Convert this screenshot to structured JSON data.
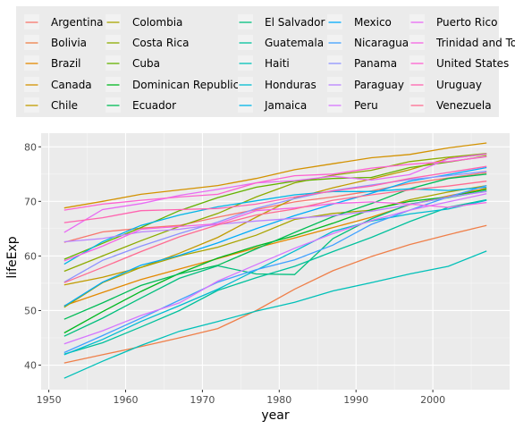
{
  "chart_data": {
    "type": "line",
    "title": "",
    "xlabel": "year",
    "ylabel": "lifeExp",
    "xlim": [
      1949,
      2010
    ],
    "ylim": [
      35.5,
      82.5
    ],
    "x_ticks": [
      1950,
      1960,
      1970,
      1980,
      1990,
      2000
    ],
    "y_ticks": [
      40,
      50,
      60,
      70,
      80
    ],
    "grid": true,
    "legend_position": "top",
    "x": [
      1952,
      1957,
      1962,
      1967,
      1972,
      1977,
      1982,
      1987,
      1992,
      1997,
      2002,
      2007
    ],
    "series": [
      {
        "name": "Argentina",
        "color": "#F8766D",
        "values": [
          62.5,
          64.4,
          65.1,
          65.6,
          67.1,
          68.5,
          69.9,
          70.8,
          71.9,
          73.3,
          74.3,
          75.3
        ]
      },
      {
        "name": "Bolivia",
        "color": "#EF7F49",
        "values": [
          40.4,
          41.9,
          43.4,
          45.0,
          46.7,
          50.0,
          53.9,
          57.3,
          59.9,
          62.1,
          63.9,
          65.6
        ]
      },
      {
        "name": "Brazil",
        "color": "#E38900",
        "values": [
          50.9,
          53.3,
          55.7,
          57.6,
          59.5,
          61.5,
          63.3,
          65.2,
          67.1,
          69.4,
          71.0,
          72.4
        ]
      },
      {
        "name": "Canada",
        "color": "#D39200",
        "values": [
          68.8,
          70.0,
          71.3,
          72.1,
          72.9,
          74.2,
          75.8,
          76.9,
          78.0,
          78.6,
          79.8,
          80.7
        ]
      },
      {
        "name": "Chile",
        "color": "#C09B00",
        "values": [
          54.7,
          56.1,
          57.9,
          60.5,
          63.4,
          67.1,
          70.6,
          72.5,
          74.1,
          75.8,
          77.9,
          78.6
        ]
      },
      {
        "name": "Colombia",
        "color": "#A9A400",
        "values": [
          50.6,
          55.1,
          57.9,
          60.0,
          61.6,
          63.8,
          66.7,
          67.8,
          68.4,
          70.3,
          71.7,
          72.9
        ]
      },
      {
        "name": "Costa Rica",
        "color": "#8DAB00",
        "values": [
          57.2,
          60.0,
          62.8,
          65.4,
          67.8,
          70.8,
          73.4,
          74.8,
          75.7,
          77.3,
          78.1,
          78.8
        ]
      },
      {
        "name": "Cuba",
        "color": "#64B200",
        "values": [
          59.4,
          62.3,
          65.2,
          68.3,
          70.7,
          72.6,
          73.7,
          74.2,
          74.4,
          76.2,
          77.2,
          78.3
        ]
      },
      {
        "name": "Dominican Republic",
        "color": "#00B81F",
        "values": [
          45.9,
          49.8,
          53.5,
          56.8,
          59.6,
          61.8,
          63.7,
          66.0,
          68.5,
          70.0,
          70.8,
          72.2
        ]
      },
      {
        "name": "Ecuador",
        "color": "#00BC56",
        "values": [
          48.4,
          51.4,
          54.6,
          56.7,
          58.3,
          61.3,
          64.3,
          67.2,
          69.6,
          72.3,
          74.2,
          75.0
        ]
      },
      {
        "name": "El Salvador",
        "color": "#00BF7D",
        "values": [
          45.3,
          48.6,
          52.3,
          55.9,
          58.2,
          56.7,
          56.6,
          63.2,
          66.8,
          69.5,
          70.7,
          71.9
        ]
      },
      {
        "name": "Guatemala",
        "color": "#00C19C",
        "values": [
          42.0,
          44.1,
          47.0,
          50.0,
          53.7,
          56.0,
          58.1,
          60.8,
          63.4,
          66.3,
          68.9,
          70.3
        ]
      },
      {
        "name": "Haiti",
        "color": "#00C0B8",
        "values": [
          37.6,
          40.7,
          43.6,
          46.2,
          48.0,
          49.9,
          51.5,
          53.6,
          55.1,
          56.7,
          58.1,
          60.9
        ]
      },
      {
        "name": "Honduras",
        "color": "#00BCD1",
        "values": [
          41.9,
          44.7,
          48.0,
          50.9,
          53.9,
          57.4,
          60.9,
          64.5,
          66.4,
          67.7,
          68.6,
          70.2
        ]
      },
      {
        "name": "Jamaica",
        "color": "#00B5E7",
        "values": [
          58.5,
          62.6,
          65.6,
          67.5,
          69.0,
          70.1,
          71.2,
          71.8,
          71.8,
          72.3,
          72.0,
          72.6
        ]
      },
      {
        "name": "Mexico",
        "color": "#00ACFA",
        "values": [
          50.8,
          55.2,
          58.3,
          60.1,
          62.4,
          65.0,
          67.4,
          69.5,
          71.5,
          73.7,
          74.9,
          76.2
        ]
      },
      {
        "name": "Nicaragua",
        "color": "#3FA0FF",
        "values": [
          42.3,
          45.4,
          48.6,
          51.9,
          55.2,
          57.5,
          59.3,
          62.0,
          65.8,
          68.4,
          70.8,
          72.9
        ]
      },
      {
        "name": "Panama",
        "color": "#8E92FF",
        "values": [
          55.2,
          59.2,
          61.8,
          64.1,
          66.2,
          68.7,
          70.5,
          72.0,
          73.0,
          74.0,
          74.7,
          75.5
        ]
      },
      {
        "name": "Paraguay",
        "color": "#B983FF",
        "values": [
          62.6,
          63.2,
          64.4,
          64.9,
          65.8,
          66.4,
          66.9,
          67.4,
          68.2,
          69.4,
          70.8,
          71.8
        ]
      },
      {
        "name": "Peru",
        "color": "#D575FE",
        "values": [
          43.9,
          46.3,
          49.1,
          51.4,
          55.4,
          58.4,
          61.4,
          64.1,
          66.5,
          68.4,
          69.9,
          71.4
        ]
      },
      {
        "name": "Puerto Rico",
        "color": "#E86BF4",
        "values": [
          64.3,
          68.5,
          69.6,
          71.1,
          72.2,
          73.4,
          73.8,
          74.6,
          73.9,
          74.9,
          77.8,
          78.7
        ]
      },
      {
        "name": "Trinidad and Tobago",
        "color": "#F564E3",
        "values": [
          59.1,
          61.8,
          64.9,
          65.4,
          65.9,
          68.3,
          68.8,
          69.6,
          69.9,
          69.5,
          68.9,
          69.8
        ]
      },
      {
        "name": "United States",
        "color": "#FD61D1",
        "values": [
          68.4,
          69.5,
          70.2,
          70.8,
          71.3,
          73.4,
          74.7,
          75.0,
          76.1,
          76.8,
          77.3,
          78.2
        ]
      },
      {
        "name": "Uruguay",
        "color": "#FF64B0",
        "values": [
          66.1,
          67.0,
          68.3,
          68.5,
          68.7,
          69.5,
          70.8,
          71.9,
          72.8,
          74.2,
          75.3,
          76.4
        ]
      },
      {
        "name": "Venezuela",
        "color": "#FF6C91",
        "values": [
          55.1,
          57.9,
          60.8,
          63.5,
          65.7,
          67.5,
          68.6,
          70.2,
          71.2,
          72.1,
          72.8,
          73.7
        ]
      }
    ]
  }
}
